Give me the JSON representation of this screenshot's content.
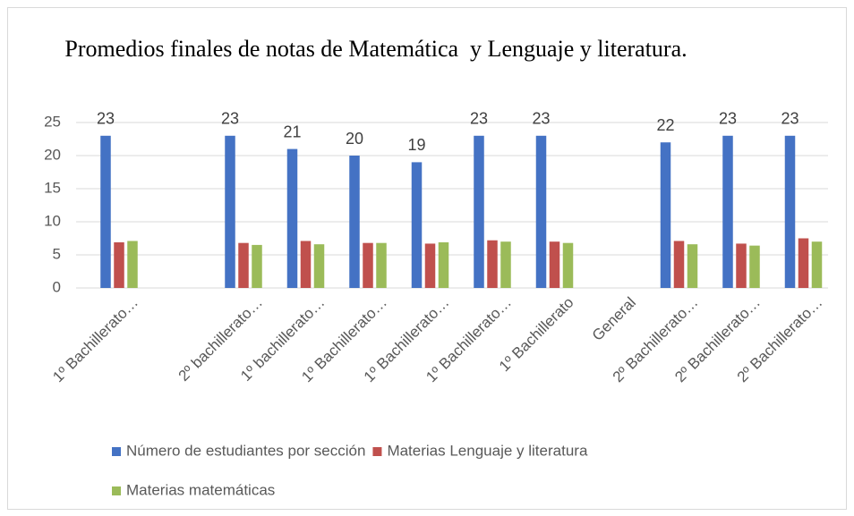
{
  "chart_data": {
    "type": "bar",
    "title": "Promedios finales de notas de Matemática  y Lenguaje y literatura.",
    "categories": [
      "1º  Bachillerato…",
      null,
      "2º bachillerato…",
      "1º bachillerato…",
      "1º Bachillerato…",
      "1º Bachillerato…",
      "1º Bachillerato…",
      "1º Bachillerato",
      "General",
      "2º Bachillerato…",
      "2º Bachillerato…",
      "2º Bachillerato…"
    ],
    "series": [
      {
        "name": "Número de estudiantes por sección",
        "color": "#4472c4",
        "values": [
          23,
          null,
          23,
          21,
          20,
          19,
          23,
          23,
          null,
          22,
          23,
          23
        ],
        "data_labels": true
      },
      {
        "name": "Materias Lenguaje y literatura",
        "color": "#c0504d",
        "values": [
          6.9,
          null,
          6.8,
          7.1,
          6.8,
          6.7,
          7.2,
          7.0,
          null,
          7.1,
          6.7,
          7.5
        ]
      },
      {
        "name": "Materias matemáticas",
        "color": "#9bbb59",
        "values": [
          7.1,
          null,
          6.5,
          6.6,
          6.8,
          6.9,
          7.0,
          6.8,
          null,
          6.6,
          6.4,
          7.0
        ]
      }
    ],
    "ylim": [
      0,
      25
    ],
    "yticks": [
      0,
      5,
      10,
      15,
      20,
      25
    ],
    "grid": true,
    "legend": "bottom"
  }
}
